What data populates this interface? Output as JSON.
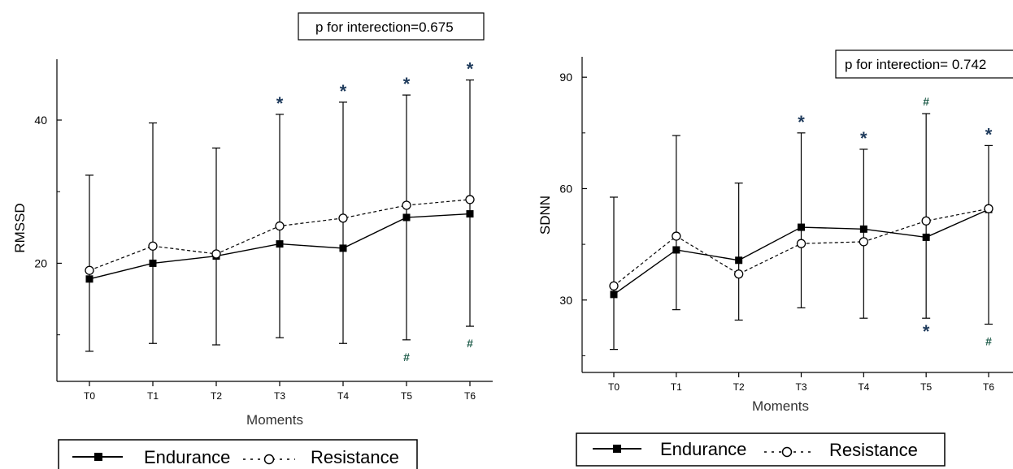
{
  "chart_data": [
    {
      "type": "line",
      "xlabel": "Moments",
      "ylabel": "RMSSD",
      "categories": [
        "T0",
        "T1",
        "T2",
        "T3",
        "T4",
        "T5",
        "T6"
      ],
      "yticks": [
        20,
        40
      ],
      "ylim": [
        3.5,
        48.5
      ],
      "grid": false,
      "legend_placement": "bottom",
      "annotation": "p for interection=0.675",
      "series": [
        {
          "name": "Endurance",
          "marker": "filled-square",
          "line": "solid",
          "values": [
            17.8,
            20.0,
            21.0,
            22.7,
            22.1,
            26.4,
            26.9
          ]
        },
        {
          "name": "Resistance",
          "marker": "open-circle",
          "line": "dashed",
          "values": [
            19.0,
            22.4,
            21.3,
            25.2,
            26.3,
            28.1,
            28.9
          ]
        }
      ],
      "error_bars": {
        "upper": [
          32.3,
          39.6,
          36.1,
          40.8,
          42.5,
          43.5,
          45.6
        ],
        "lower": [
          7.7,
          8.8,
          8.6,
          9.6,
          8.8,
          9.3,
          11.2
        ]
      },
      "marks_above": [
        "",
        "",
        "",
        "*",
        "*",
        "*",
        "*"
      ],
      "marks_below": [
        "",
        "",
        "",
        "",
        "",
        "#",
        "#"
      ]
    },
    {
      "type": "line",
      "xlabel": "Moments",
      "ylabel": "SDNN",
      "categories": [
        "T0",
        "T1",
        "T2",
        "T3",
        "T4",
        "T5",
        "T6"
      ],
      "yticks": [
        30,
        60,
        90
      ],
      "ylim": [
        10.5,
        95.5
      ],
      "grid": false,
      "legend_placement": "bottom",
      "annotation": "p for interection= 0.742",
      "series": [
        {
          "name": "Endurance",
          "marker": "filled-square",
          "line": "solid",
          "values": [
            31.5,
            43.5,
            40.7,
            49.6,
            49.1,
            46.9,
            54.4
          ]
        },
        {
          "name": "Resistance",
          "marker": "open-circle",
          "line": "dashed",
          "values": [
            33.8,
            47.2,
            37.0,
            45.2,
            45.7,
            51.3,
            54.6
          ]
        }
      ],
      "error_bars": {
        "upper": [
          57.7,
          74.3,
          61.5,
          75.0,
          70.6,
          80.2,
          71.6
        ],
        "lower": [
          16.7,
          27.4,
          24.6,
          27.9,
          25.1,
          25.1,
          23.5
        ]
      },
      "marks_above": [
        "",
        "",
        "",
        "*",
        "*",
        "#",
        "*"
      ],
      "marks_below": [
        "",
        "",
        "",
        "",
        "",
        "*",
        "#"
      ]
    }
  ]
}
